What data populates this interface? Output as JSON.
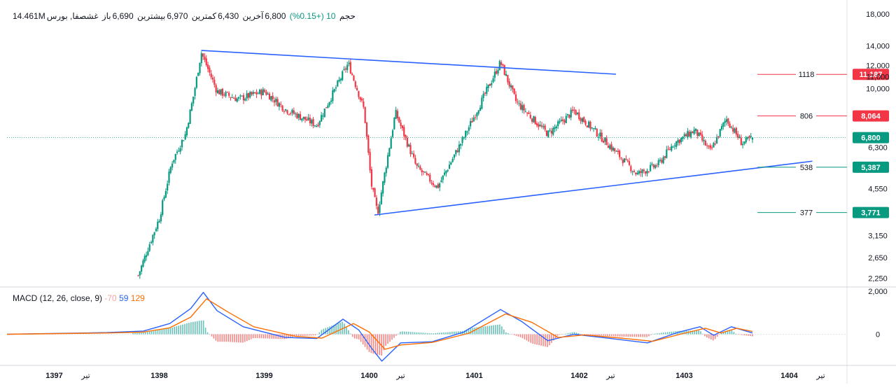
{
  "header": {
    "symbol": "غشصفا, بورس",
    "open_label": "باز",
    "open_value": "6,690",
    "high_label": "بیشترین",
    "high_value": "6,970",
    "low_label": "کمترین",
    "low_value": "6,430",
    "close_label": "آخرین",
    "close_value": "6,800",
    "change": "10 (+0.15%)",
    "volume_label": "حجم",
    "volume_value": "14.461M"
  },
  "macd_header": {
    "label": "MACD (12, 26, close, 9)",
    "hist": "-70",
    "macd": "59",
    "signal": "129"
  },
  "colors": {
    "up": "#089981",
    "down": "#f23645",
    "trendline": "#2962ff",
    "macd": "#2962ff",
    "signal": "#ff6d00",
    "hist_up": "#26a69a",
    "hist_down": "#ef5350",
    "axis_text": "#131722"
  },
  "chart_data": [
    {
      "type": "candlestick",
      "x_axis_labels": [
        "1397",
        "تیر",
        "1398",
        "1399",
        "1400",
        "تیر",
        "1401",
        "1402",
        "تیر",
        "1403",
        "1404",
        "تیر"
      ],
      "x_axis_times": [
        1397.0,
        1397.3,
        1398.0,
        1399.0,
        1400.0,
        1400.3,
        1401.0,
        1402.0,
        1402.3,
        1403.0,
        1404.0,
        1404.3
      ],
      "y_axis_labels": [
        "18,000",
        "14,000",
        "12,000",
        "11,000",
        "10,000",
        "6,300",
        "4,550",
        "3,150",
        "2,650",
        "2,250"
      ],
      "y_axis_values": [
        18000,
        14000,
        12000,
        11000,
        10000,
        6300,
        4550,
        3150,
        2650,
        2250
      ],
      "scale": "log",
      "ylim": [
        2100,
        19000
      ],
      "xlim": [
        1396.55,
        1404.55
      ],
      "last_price": 6800,
      "price_tags": [
        {
          "level": "1118",
          "price": "11,187",
          "value": 11187,
          "tag": "red"
        },
        {
          "level": "806",
          "price": "8,064",
          "value": 8064,
          "tag": "red"
        },
        {
          "level": "538",
          "price": "5,387",
          "value": 5387,
          "tag": "green"
        },
        {
          "level": "377",
          "price": "3,771",
          "value": 3771,
          "tag": "green"
        }
      ],
      "last_price_tag": "6,800",
      "trendlines": [
        {
          "x1": 1398.4,
          "y1": 13500,
          "x2": 1402.35,
          "y2": 11200
        },
        {
          "x1": 1400.05,
          "y1": 3700,
          "x2": 1404.22,
          "y2": 5650
        }
      ],
      "price_path": [
        {
          "t": 1397.8,
          "p": 2300
        },
        {
          "t": 1397.9,
          "p": 2900
        },
        {
          "t": 1398.0,
          "p": 3600
        },
        {
          "t": 1398.12,
          "p": 5600
        },
        {
          "t": 1398.25,
          "p": 7000
        },
        {
          "t": 1398.33,
          "p": 9600
        },
        {
          "t": 1398.4,
          "p": 13300
        },
        {
          "t": 1398.55,
          "p": 9800
        },
        {
          "t": 1398.75,
          "p": 9200
        },
        {
          "t": 1399.0,
          "p": 9800
        },
        {
          "t": 1399.2,
          "p": 8500
        },
        {
          "t": 1399.5,
          "p": 7500
        },
        {
          "t": 1399.8,
          "p": 12200
        },
        {
          "t": 1399.95,
          "p": 8500
        },
        {
          "t": 1400.02,
          "p": 4700
        },
        {
          "t": 1400.08,
          "p": 3750
        },
        {
          "t": 1400.25,
          "p": 8300
        },
        {
          "t": 1400.45,
          "p": 5400
        },
        {
          "t": 1400.65,
          "p": 4600
        },
        {
          "t": 1400.9,
          "p": 6800
        },
        {
          "t": 1401.25,
          "p": 12300
        },
        {
          "t": 1401.4,
          "p": 9000
        },
        {
          "t": 1401.7,
          "p": 7000
        },
        {
          "t": 1401.95,
          "p": 8400
        },
        {
          "t": 1402.25,
          "p": 6600
        },
        {
          "t": 1402.55,
          "p": 5100
        },
        {
          "t": 1402.75,
          "p": 5500
        },
        {
          "t": 1402.9,
          "p": 6500
        },
        {
          "t": 1403.1,
          "p": 7200
        },
        {
          "t": 1403.25,
          "p": 6100
        },
        {
          "t": 1403.4,
          "p": 7900
        },
        {
          "t": 1403.55,
          "p": 6500
        },
        {
          "t": 1403.65,
          "p": 6800
        }
      ],
      "ohlc_last": {
        "open": 6690,
        "high": 6970,
        "low": 6430,
        "close": 6800
      }
    },
    {
      "type": "line",
      "title": "MACD (12, 26, close, 9)",
      "y_axis_labels": [
        "2,000",
        "0"
      ],
      "y_axis_values": [
        2000,
        0
      ],
      "ylim": [
        -1450,
        2200
      ],
      "series": [
        {
          "name": "MACD",
          "color": "#2962ff",
          "points": [
            {
              "t": 1396.55,
              "v": 0
            },
            {
              "t": 1397.5,
              "v": 80
            },
            {
              "t": 1397.85,
              "v": 150
            },
            {
              "t": 1398.1,
              "v": 500
            },
            {
              "t": 1398.3,
              "v": 1200
            },
            {
              "t": 1398.42,
              "v": 1950
            },
            {
              "t": 1398.55,
              "v": 1100
            },
            {
              "t": 1398.8,
              "v": 350
            },
            {
              "t": 1399.2,
              "v": -150
            },
            {
              "t": 1399.5,
              "v": -200
            },
            {
              "t": 1399.75,
              "v": 700
            },
            {
              "t": 1399.9,
              "v": 200
            },
            {
              "t": 1400.03,
              "v": -700
            },
            {
              "t": 1400.12,
              "v": -1250
            },
            {
              "t": 1400.3,
              "v": -400
            },
            {
              "t": 1400.6,
              "v": -350
            },
            {
              "t": 1400.9,
              "v": 100
            },
            {
              "t": 1401.25,
              "v": 1150
            },
            {
              "t": 1401.45,
              "v": 600
            },
            {
              "t": 1401.7,
              "v": -300
            },
            {
              "t": 1401.95,
              "v": 0
            },
            {
              "t": 1402.3,
              "v": -200
            },
            {
              "t": 1402.65,
              "v": -400
            },
            {
              "t": 1402.95,
              "v": 100
            },
            {
              "t": 1403.15,
              "v": 350
            },
            {
              "t": 1403.28,
              "v": -50
            },
            {
              "t": 1403.45,
              "v": 350
            },
            {
              "t": 1403.65,
              "v": 60
            }
          ]
        },
        {
          "name": "Signal",
          "color": "#ff6d00",
          "points": [
            {
              "t": 1396.55,
              "v": 0
            },
            {
              "t": 1397.5,
              "v": 60
            },
            {
              "t": 1397.85,
              "v": 100
            },
            {
              "t": 1398.1,
              "v": 300
            },
            {
              "t": 1398.3,
              "v": 800
            },
            {
              "t": 1398.45,
              "v": 1650
            },
            {
              "t": 1398.65,
              "v": 1050
            },
            {
              "t": 1398.9,
              "v": 350
            },
            {
              "t": 1399.3,
              "v": -100
            },
            {
              "t": 1399.55,
              "v": -180
            },
            {
              "t": 1399.85,
              "v": 500
            },
            {
              "t": 1400.0,
              "v": 100
            },
            {
              "t": 1400.15,
              "v": -700
            },
            {
              "t": 1400.3,
              "v": -500
            },
            {
              "t": 1400.6,
              "v": -380
            },
            {
              "t": 1400.95,
              "v": 50
            },
            {
              "t": 1401.3,
              "v": 950
            },
            {
              "t": 1401.55,
              "v": 550
            },
            {
              "t": 1401.8,
              "v": -150
            },
            {
              "t": 1402.05,
              "v": -30
            },
            {
              "t": 1402.4,
              "v": -180
            },
            {
              "t": 1402.7,
              "v": -330
            },
            {
              "t": 1403.0,
              "v": 50
            },
            {
              "t": 1403.2,
              "v": 280
            },
            {
              "t": 1403.35,
              "v": 60
            },
            {
              "t": 1403.5,
              "v": 280
            },
            {
              "t": 1403.65,
              "v": 129
            }
          ]
        }
      ],
      "histogram_note": "bars = MACD - Signal"
    }
  ]
}
